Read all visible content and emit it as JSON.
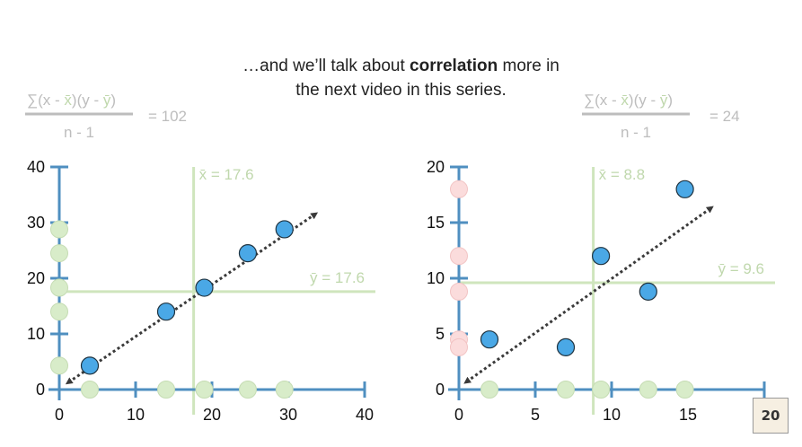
{
  "caption": {
    "line1_before": "…and we’ll talk about ",
    "line1_bold": "correlation",
    "line1_after": " more in",
    "line2": "the next video in this series."
  },
  "formula_text": {
    "sigma": "∑",
    "open": "(x - ",
    "xbar": "x̄",
    "mid": ")(y - ",
    "ybar": "ȳ",
    "close": ")",
    "denominator": "n - 1"
  },
  "logo_text": "20",
  "colors": {
    "axis": "#4f8fc0",
    "point": "#4aa8e6",
    "point_stroke": "#1f3340",
    "xproj": "#d8ecc9",
    "yproj_left": "#d8ecc9",
    "yproj_right": "#fbdcdc",
    "meanline": "#cfe5bd",
    "meanlabel": "#c0d8ad",
    "formula": "#bdbdbd",
    "arrow": "#3a3a3a"
  },
  "chart_data": [
    {
      "type": "scatter",
      "covariance_result": "= 102",
      "xlim": [
        0,
        40
      ],
      "ylim": [
        0,
        40
      ],
      "xticks": [
        0,
        10,
        20,
        30,
        40
      ],
      "yticks": [
        0,
        10,
        20,
        30,
        40
      ],
      "xticklabels": [
        "0",
        "10",
        "20",
        "30",
        "40"
      ],
      "yticklabels": [
        "0",
        "10",
        "20",
        "30",
        "40"
      ],
      "points": [
        {
          "x": 4,
          "y": 4.3
        },
        {
          "x": 14,
          "y": 14
        },
        {
          "x": 19,
          "y": 18.3
        },
        {
          "x": 24.7,
          "y": 24.5
        },
        {
          "x": 29.5,
          "y": 28.8
        }
      ],
      "x_mean": 17.6,
      "y_mean": 17.6,
      "x_mean_label": "x̄ = 17.6",
      "y_mean_label": "ȳ = 17.6",
      "trend": {
        "from": [
          1.2,
          1.3
        ],
        "to": [
          33.5,
          31.5
        ]
      }
    },
    {
      "type": "scatter",
      "covariance_result": "= 24",
      "xlim": [
        0,
        20
      ],
      "ylim": [
        0,
        20
      ],
      "xticks": [
        0,
        5,
        10,
        15,
        20
      ],
      "yticks": [
        0,
        5,
        10,
        15,
        20
      ],
      "xticklabels": [
        "0",
        "5",
        "10",
        "15",
        ""
      ],
      "yticklabels": [
        "0",
        "5",
        "10",
        "15",
        "20"
      ],
      "points": [
        {
          "x": 2,
          "y": 4.5
        },
        {
          "x": 7,
          "y": 3.8
        },
        {
          "x": 9.3,
          "y": 12
        },
        {
          "x": 12.4,
          "y": 8.8
        },
        {
          "x": 14.8,
          "y": 18
        }
      ],
      "x_mean": 8.8,
      "y_mean": 9.6,
      "x_mean_label": "x̄ = 8.8",
      "y_mean_label": "ȳ = 9.6",
      "trend": {
        "from": [
          0.5,
          0.7
        ],
        "to": [
          16.5,
          16.3
        ]
      }
    }
  ]
}
